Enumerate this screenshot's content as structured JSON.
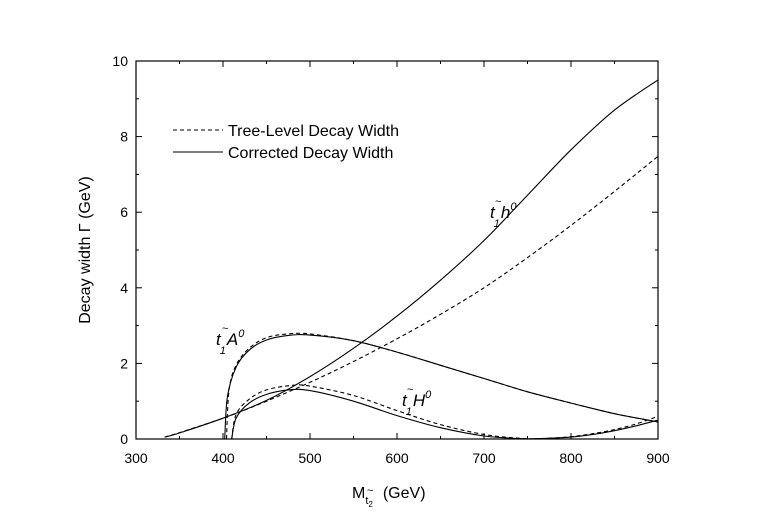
{
  "chart_data": {
    "type": "line",
    "xlabel": "M",
    "xlabel_sub": "t",
    "xlabel_subsub": "2",
    "xlabel_tilde": "~",
    "xlabel_unit": "(GeV)",
    "ylabel": "Decay width  Γ  (GeV)",
    "xlim": [
      300,
      900
    ],
    "ylim": [
      0,
      10
    ],
    "xticks": [
      300,
      400,
      500,
      600,
      700,
      800,
      900
    ],
    "yticks": [
      0,
      2,
      4,
      6,
      8,
      10
    ],
    "grid": false,
    "legend_position": "top-left",
    "legend": [
      {
        "label": "Tree-Level Decay Width",
        "style": "dashed"
      },
      {
        "label": "Corrected Decay Width",
        "style": "solid"
      }
    ],
    "series": [
      {
        "channel": "t1h0",
        "style": "dashed",
        "x": [
          333,
          350,
          400,
          450,
          500,
          550,
          600,
          650,
          700,
          750,
          800,
          850,
          900
        ],
        "y": [
          0.05,
          0.17,
          0.55,
          1.0,
          1.5,
          2.05,
          2.65,
          3.3,
          4.0,
          4.8,
          5.65,
          6.55,
          7.48
        ]
      },
      {
        "channel": "t1h0",
        "style": "solid",
        "x": [
          333,
          350,
          400,
          450,
          500,
          550,
          600,
          650,
          700,
          750,
          800,
          850,
          900
        ],
        "y": [
          0.05,
          0.16,
          0.55,
          1.02,
          1.65,
          2.4,
          3.25,
          4.2,
          5.25,
          6.45,
          7.65,
          8.7,
          9.5
        ]
      },
      {
        "channel": "t1A0",
        "style": "dashed",
        "x": [
          404,
          407,
          415,
          430,
          450,
          475,
          500,
          550,
          600,
          650,
          700,
          750,
          800,
          850,
          900
        ],
        "y": [
          0.0,
          1.3,
          1.95,
          2.4,
          2.68,
          2.78,
          2.78,
          2.6,
          2.3,
          1.95,
          1.6,
          1.25,
          0.95,
          0.67,
          0.45
        ]
      },
      {
        "channel": "t1A0",
        "style": "solid",
        "x": [
          402,
          405,
          415,
          430,
          450,
          475,
          500,
          550,
          600,
          650,
          700,
          750,
          800,
          850,
          900
        ],
        "y": [
          0.0,
          1.1,
          1.9,
          2.35,
          2.62,
          2.74,
          2.75,
          2.6,
          2.3,
          1.95,
          1.6,
          1.25,
          0.95,
          0.67,
          0.45
        ]
      },
      {
        "channel": "t1H0",
        "style": "dashed",
        "x": [
          410,
          415,
          430,
          450,
          480,
          500,
          550,
          600,
          650,
          700,
          740,
          760
        ],
        "y": [
          0.0,
          0.65,
          1.05,
          1.3,
          1.42,
          1.4,
          1.15,
          0.75,
          0.38,
          0.12,
          0.02,
          0.0
        ]
      },
      {
        "channel": "t1H0",
        "style": "solid",
        "x": [
          410,
          415,
          430,
          450,
          475,
          500,
          550,
          600,
          650,
          700,
          740,
          760
        ],
        "y": [
          0.0,
          0.55,
          0.95,
          1.18,
          1.3,
          1.28,
          1.0,
          0.62,
          0.3,
          0.08,
          0.01,
          0.0
        ]
      },
      {
        "channel": "rising",
        "style": "dashed",
        "x": [
          750,
          775,
          800,
          825,
          850,
          875,
          900
        ],
        "y": [
          0.0,
          0.02,
          0.06,
          0.14,
          0.25,
          0.4,
          0.6
        ]
      },
      {
        "channel": "rising",
        "style": "solid",
        "x": [
          750,
          775,
          800,
          825,
          850,
          875,
          900
        ],
        "y": [
          0.0,
          0.02,
          0.05,
          0.12,
          0.22,
          0.35,
          0.5
        ]
      }
    ],
    "annotations": [
      {
        "channel": "t1h0",
        "base": "t",
        "tilde": "~",
        "sub": "1",
        "particle": "h",
        "sup": "0",
        "x": 702,
        "y": 5.4
      },
      {
        "channel": "t1A0",
        "base": "t",
        "tilde": "~",
        "sub": "1",
        "particle": "A",
        "sup": "0",
        "x": 418,
        "y": 2.55
      },
      {
        "channel": "t1H0",
        "base": "t",
        "tilde": "~",
        "sub": "1",
        "particle": "H",
        "sup": "0",
        "x": 603,
        "y": 0.75
      }
    ]
  }
}
